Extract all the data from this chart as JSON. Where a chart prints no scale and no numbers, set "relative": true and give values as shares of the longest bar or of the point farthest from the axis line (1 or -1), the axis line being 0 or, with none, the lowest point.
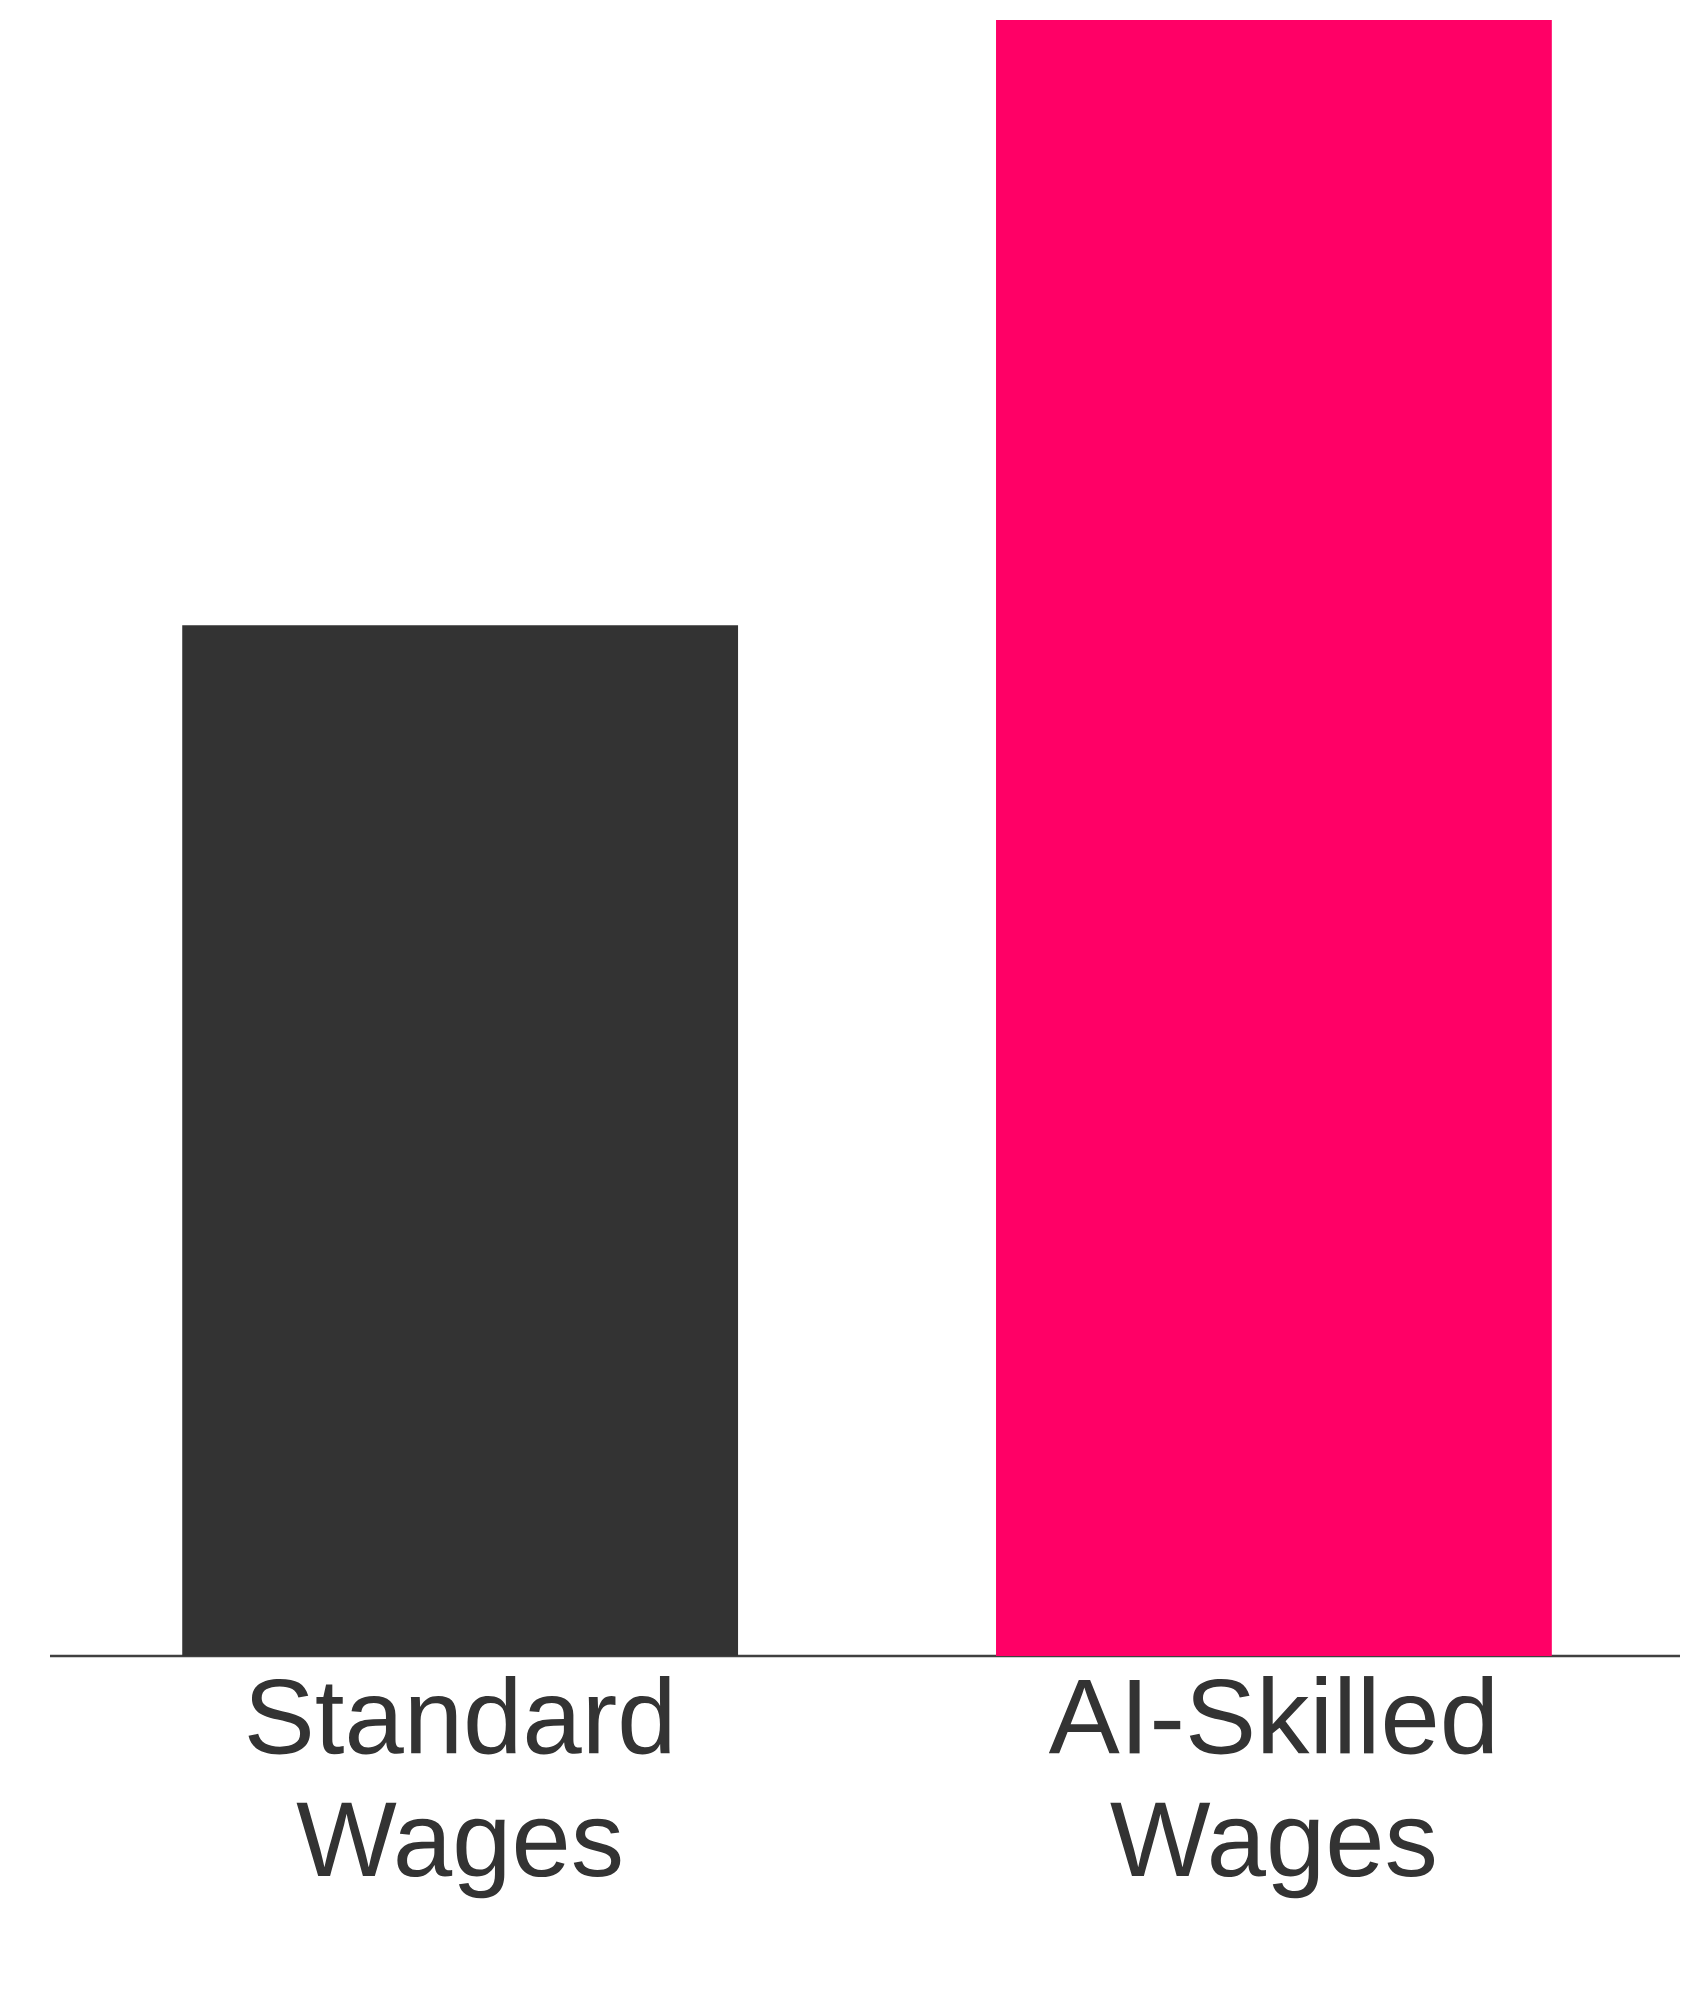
{
  "chart_data": {
    "type": "bar",
    "relative": true,
    "categories": [
      "Standard Wages",
      "AI-Skilled Wages"
    ],
    "values": [
      0.63,
      1
    ],
    "colors": [
      "#333333",
      "#ff0066"
    ]
  }
}
